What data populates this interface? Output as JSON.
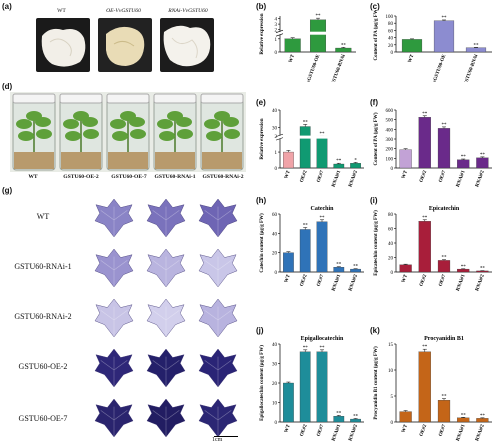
{
  "panel_labels": {
    "a": "(a)",
    "b": "(b)",
    "c": "(c)",
    "d": "(d)",
    "e": "(e)",
    "f": "(f)",
    "g": "(g)",
    "h": "(h)",
    "i": "(i)",
    "j": "(j)",
    "k": "(k)"
  },
  "photo_a": {
    "labels": [
      "WT",
      "OE-VvGSTU60",
      "RNAi-VvGSTU60"
    ]
  },
  "photo_d": {
    "labels": [
      "WT",
      "GSTU60-OE-2",
      "GSTU60-OE-7",
      "GSTU60-RNAi-1",
      "GSTU60-RNAi-2"
    ]
  },
  "photo_g": {
    "rows": [
      "WT",
      "GSTU60-RNAi-1",
      "GSTU60-RNAi-2",
      "GSTU60-OE-2",
      "GSTU60-OE-7"
    ],
    "scale": "1cm"
  },
  "colors": {
    "b": "#2e9a3e",
    "c": "#8c8cd0",
    "e": "#109a72",
    "f": "#6a2a8a",
    "h": "#2f73b8",
    "i": "#a81e3a",
    "j": "#1e8d9a",
    "k": "#c46518"
  },
  "chart_data": [
    {
      "id": "b",
      "type": "bar",
      "categories": [
        "WT",
        "VvGSTU60-OE",
        "VvGSTU60-RNAi"
      ],
      "values": [
        1.0,
        3.8,
        0.3
      ],
      "errors": [
        0.08,
        0.3,
        0.05
      ],
      "sig": [
        "",
        "**",
        "**"
      ],
      "ylabel": "Relative expression",
      "ylim": [
        0,
        4.5
      ],
      "ticks": [
        0,
        1,
        2,
        3,
        4
      ],
      "break": true
    },
    {
      "id": "c",
      "type": "bar",
      "categories": [
        "WT",
        "VvGSTU60-OE",
        "VvGSTU60-RNAi"
      ],
      "values": [
        35,
        87,
        12
      ],
      "errors": [
        1.5,
        2,
        1
      ],
      "sig": [
        "",
        "**",
        "**"
      ],
      "ylabel": "Content of PA (μg/g FW)",
      "ylim": [
        0,
        100
      ],
      "ticks": [
        0,
        20,
        40,
        60,
        80,
        100
      ]
    },
    {
      "id": "e",
      "type": "bar",
      "categories": [
        "WT",
        "OE#2",
        "OE#7",
        "RNAi#1",
        "RNAi#2"
      ],
      "values": [
        1.0,
        30.5,
        22.0,
        0.25,
        0.3
      ],
      "errors": [
        0.1,
        1.2,
        1.5,
        0.05,
        0.05
      ],
      "sig": [
        "",
        "**",
        "**",
        "**",
        "*"
      ],
      "ylabel": "Relative expression",
      "ylim": [
        0,
        40
      ],
      "ticks": [
        0,
        1,
        2,
        30,
        40
      ],
      "break": true
    },
    {
      "id": "f",
      "type": "bar",
      "categories": [
        "WT",
        "OE#2",
        "OE#7",
        "RNAi#1",
        "RNAi#2"
      ],
      "values": [
        190,
        525,
        410,
        85,
        105
      ],
      "errors": [
        10,
        15,
        15,
        8,
        10
      ],
      "sig": [
        "",
        "**",
        "**",
        "**",
        "**"
      ],
      "ylabel": "Content of PA (μg/g FW)",
      "ylim": [
        0,
        600
      ],
      "ticks": [
        0,
        100,
        200,
        300,
        400,
        500,
        600
      ]
    },
    {
      "id": "h",
      "type": "bar",
      "title": "Catechin",
      "categories": [
        "WT",
        "OE#2",
        "OE#7",
        "RNAi#1",
        "RNAi#2"
      ],
      "values": [
        20,
        44,
        52,
        5,
        3
      ],
      "errors": [
        1,
        2,
        2,
        0.5,
        0.4
      ],
      "sig": [
        "",
        "**",
        "**",
        "**",
        "**"
      ],
      "ylabel": "Catechin content (μg/g FW)",
      "ylim": [
        0,
        60
      ],
      "ticks": [
        0,
        20,
        40,
        60
      ]
    },
    {
      "id": "i",
      "type": "bar",
      "title": "Epicatechin",
      "categories": [
        "WT",
        "OE#2",
        "OE#7",
        "RNAi#1",
        "RNAi#2"
      ],
      "values": [
        10,
        70,
        16,
        4,
        1.5
      ],
      "errors": [
        0.8,
        2,
        1,
        0.4,
        0.3
      ],
      "sig": [
        "",
        "**",
        "**",
        "**",
        "**"
      ],
      "ylabel": "Epicatechin content (μg/g FW)",
      "ylim": [
        0,
        80
      ],
      "ticks": [
        0,
        20,
        40,
        60,
        80
      ]
    },
    {
      "id": "j",
      "type": "bar",
      "title": "Epigallocatechin",
      "categories": [
        "WT",
        "OE#2",
        "OE#7",
        "RNAi#1",
        "RNAi#2"
      ],
      "values": [
        20,
        36,
        36,
        3,
        1.5
      ],
      "errors": [
        0.5,
        1,
        1,
        0.4,
        0.3
      ],
      "sig": [
        "",
        "**",
        "**",
        "**",
        "**"
      ],
      "ylabel": "Epigallocatechin content (μg/g FW)",
      "ylim": [
        0,
        40
      ],
      "ticks": [
        0,
        10,
        20,
        30,
        40
      ]
    },
    {
      "id": "k",
      "type": "bar",
      "title": "Procyanidin B1",
      "categories": [
        "WT",
        "OE#2",
        "OE#7",
        "RNAi#1",
        "RNAi#2"
      ],
      "values": [
        2,
        13.5,
        4.2,
        0.8,
        0.7
      ],
      "errors": [
        0.2,
        0.5,
        0.3,
        0.1,
        0.1
      ],
      "sig": [
        "",
        "**",
        "**",
        "**",
        "**"
      ],
      "ylabel": "Procyanidin B1 content (μg/g FW)",
      "ylim": [
        0,
        15
      ],
      "ticks": [
        0,
        5,
        10,
        15
      ]
    }
  ]
}
